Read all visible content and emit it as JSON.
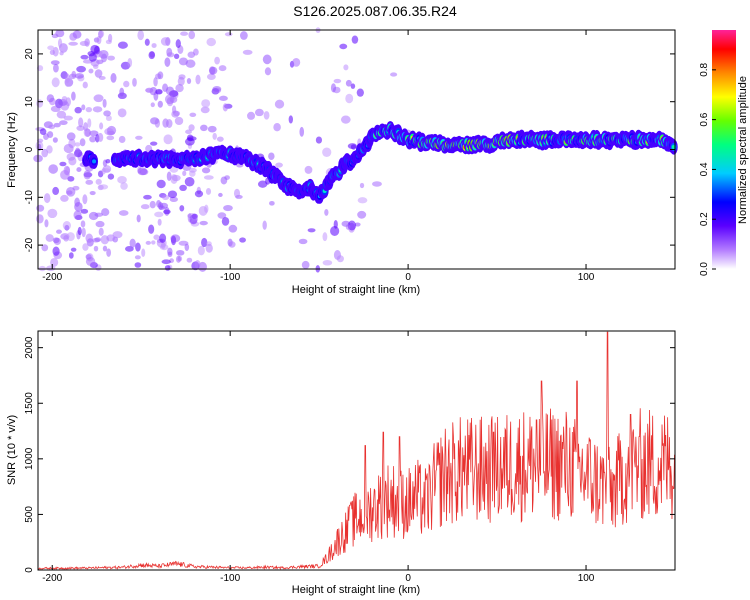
{
  "title": "S126.2025.087.06.35.R24",
  "chart_data": [
    {
      "type": "heatmap",
      "xlabel": "Height of straight line (km)",
      "ylabel": "Frequency (Hz)",
      "xlim": [
        -208,
        150
      ],
      "ylim": [
        -25,
        25
      ],
      "xticks": [
        -200,
        -100,
        0,
        100
      ],
      "yticks": [
        -20,
        -10,
        0,
        10,
        20
      ],
      "grid": false,
      "colorbar": {
        "label": "Normalized spectral amplitude",
        "range": [
          0,
          0.96
        ],
        "ticks": [
          0.0,
          0.2,
          0.4,
          0.6,
          0.8
        ]
      },
      "ridge": {
        "description_points_x": [
          -180,
          -160,
          -140,
          -120,
          -110,
          -100,
          -90,
          -80,
          -70,
          -60,
          -55,
          -50,
          -45,
          -40,
          -35,
          -30,
          -25,
          -20,
          -10,
          0,
          20,
          40,
          60,
          80,
          100,
          120,
          140,
          150
        ],
        "frequency_hz": [
          -2,
          -2,
          -2,
          -2,
          -1,
          -1,
          -2,
          -4,
          -7,
          -9,
          -8,
          -10,
          -7,
          -5,
          -3,
          -2,
          0,
          3,
          4,
          2,
          1,
          1,
          2,
          2,
          2,
          2,
          2,
          1
        ]
      }
    },
    {
      "type": "line",
      "xlabel": "Height of straight line (km)",
      "ylabel": "SNR (10 * v/v)",
      "xlim": [
        -208,
        150
      ],
      "ylim": [
        0,
        2150
      ],
      "xticks": [
        -200,
        -100,
        0,
        100
      ],
      "yticks": [
        0,
        500,
        1000,
        1500,
        2000
      ],
      "grid": false,
      "series": [
        {
          "color": "#e8312f",
          "x": [
            -208,
            -180,
            -160,
            -150,
            -140,
            -130,
            -120,
            -110,
            -100,
            -90,
            -80,
            -70,
            -60,
            -50,
            -45,
            -40,
            -35,
            -30,
            -25,
            -20,
            -15,
            -10,
            -5,
            0,
            5,
            10,
            15,
            20,
            30,
            40,
            50,
            60,
            70,
            80,
            90,
            100,
            105,
            110,
            115,
            120,
            125,
            130,
            140,
            150
          ],
          "values": [
            15,
            18,
            25,
            45,
            35,
            55,
            30,
            25,
            20,
            20,
            25,
            20,
            30,
            35,
            120,
            250,
            350,
            450,
            500,
            550,
            600,
            650,
            600,
            600,
            650,
            600,
            750,
            850,
            900,
            900,
            900,
            950,
            950,
            950,
            950,
            850,
            800,
            750,
            700,
            850,
            900,
            950,
            950,
            950
          ],
          "peaks": [
            [
              -33,
              580
            ],
            [
              -24,
              1120
            ],
            [
              -14,
              1240
            ],
            [
              -5,
              1200
            ],
            [
              48,
              1240
            ],
            [
              72,
              1350
            ],
            [
              75,
              1700
            ],
            [
              95,
              1660
            ],
            [
              95,
              1700
            ],
            [
              112,
              2140
            ],
            [
              125,
              1400
            ],
            [
              130,
              1200
            ]
          ]
        }
      ]
    }
  ]
}
